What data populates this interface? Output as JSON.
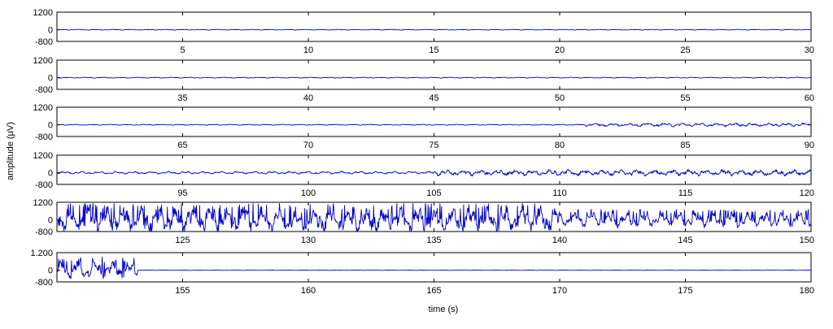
{
  "chart_data": {
    "type": "line",
    "ylabel": "amplitude (μV)",
    "xlabel": "time (s)",
    "series_color": "#0000c8",
    "panels": [
      {
        "xlim": [
          0,
          30
        ],
        "ylim": [
          -800,
          1200
        ],
        "ytick_labels": [
          "1200",
          "0",
          "-800"
        ],
        "xticks": [
          5,
          10,
          15,
          20,
          25,
          30
        ],
        "segments": [
          {
            "from": 0,
            "to": 30,
            "amplitude": 25,
            "jitter": 0.4
          }
        ]
      },
      {
        "xlim": [
          30,
          60
        ],
        "ylim": [
          -800,
          1200
        ],
        "ytick_labels": [
          "1200",
          "0",
          "-800"
        ],
        "xticks": [
          35,
          40,
          45,
          50,
          55,
          60
        ],
        "segments": [
          {
            "from": 30,
            "to": 60,
            "amplitude": 30,
            "jitter": 0.4
          }
        ]
      },
      {
        "xlim": [
          60,
          90
        ],
        "ylim": [
          -800,
          1200
        ],
        "ytick_labels": [
          "1200",
          "0",
          "-800"
        ],
        "xticks": [
          65,
          70,
          75,
          80,
          85,
          90
        ],
        "segments": [
          {
            "from": 60,
            "to": 81,
            "amplitude": 30,
            "jitter": 0.4
          },
          {
            "from": 81,
            "to": 90,
            "amplitude": 110,
            "jitter": 0.9
          }
        ]
      },
      {
        "xlim": [
          90,
          120
        ],
        "ylim": [
          -800,
          1200
        ],
        "ytick_labels": [
          "1200",
          "0",
          "-800"
        ],
        "xticks": [
          95,
          100,
          105,
          110,
          115,
          120
        ],
        "segments": [
          {
            "from": 90,
            "to": 105,
            "amplitude": 80,
            "jitter": 0.8
          },
          {
            "from": 105,
            "to": 120,
            "amplitude": 180,
            "jitter": 1.0
          }
        ]
      },
      {
        "xlim": [
          120,
          150
        ],
        "ylim": [
          -800,
          1200
        ],
        "ytick_labels": [
          "1200",
          "0",
          "-800"
        ],
        "xticks": [
          125,
          130,
          135,
          140,
          145,
          150
        ],
        "segments": [
          {
            "from": 120,
            "to": 140,
            "amplitude": 750,
            "jitter": 1.0
          },
          {
            "from": 140,
            "to": 150,
            "amplitude": 480,
            "jitter": 0.7
          }
        ]
      },
      {
        "xlim": [
          150,
          180
        ],
        "ylim": [
          -800,
          1200
        ],
        "ytick_labels": [
          "1.200",
          "0",
          "-800"
        ],
        "xticks": [
          155,
          160,
          165,
          170,
          175,
          180
        ],
        "segments": [
          {
            "from": 150,
            "to": 153.2,
            "amplitude": 600,
            "jitter": 0.7
          },
          {
            "from": 153.2,
            "to": 180,
            "amplitude": 15,
            "jitter": 0.3
          }
        ]
      }
    ]
  }
}
